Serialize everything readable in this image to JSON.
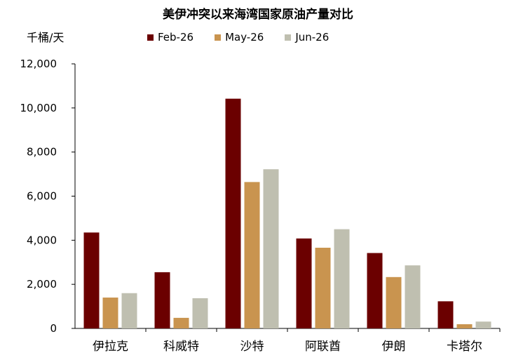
{
  "chart_data": {
    "type": "bar",
    "title": "美伊冲突以来海湾国家原油产量对比",
    "unit_label": "千桶/天",
    "categories": [
      "伊拉克",
      "科威特",
      "沙特",
      "阿联酋",
      "伊朗",
      "卡塔尔"
    ],
    "series": [
      {
        "name": "Feb-26",
        "color": "#6b0000",
        "values": [
          4350,
          2550,
          10420,
          4080,
          3420,
          1230
        ]
      },
      {
        "name": "May-26",
        "color": "#c9944f",
        "values": [
          1400,
          480,
          6640,
          3660,
          2330,
          190
        ]
      },
      {
        "name": "Jun-26",
        "color": "#bfbfb0",
        "values": [
          1600,
          1370,
          7220,
          4500,
          2860,
          310
        ]
      }
    ],
    "ylim": [
      0,
      12000
    ],
    "yticks": [
      0,
      2000,
      4000,
      6000,
      8000,
      10000,
      12000
    ],
    "ytick_labels": [
      "0",
      "2,000",
      "4,000",
      "6,000",
      "8,000",
      "10,000",
      "12,000"
    ],
    "grid": false,
    "legend_position": "top"
  }
}
